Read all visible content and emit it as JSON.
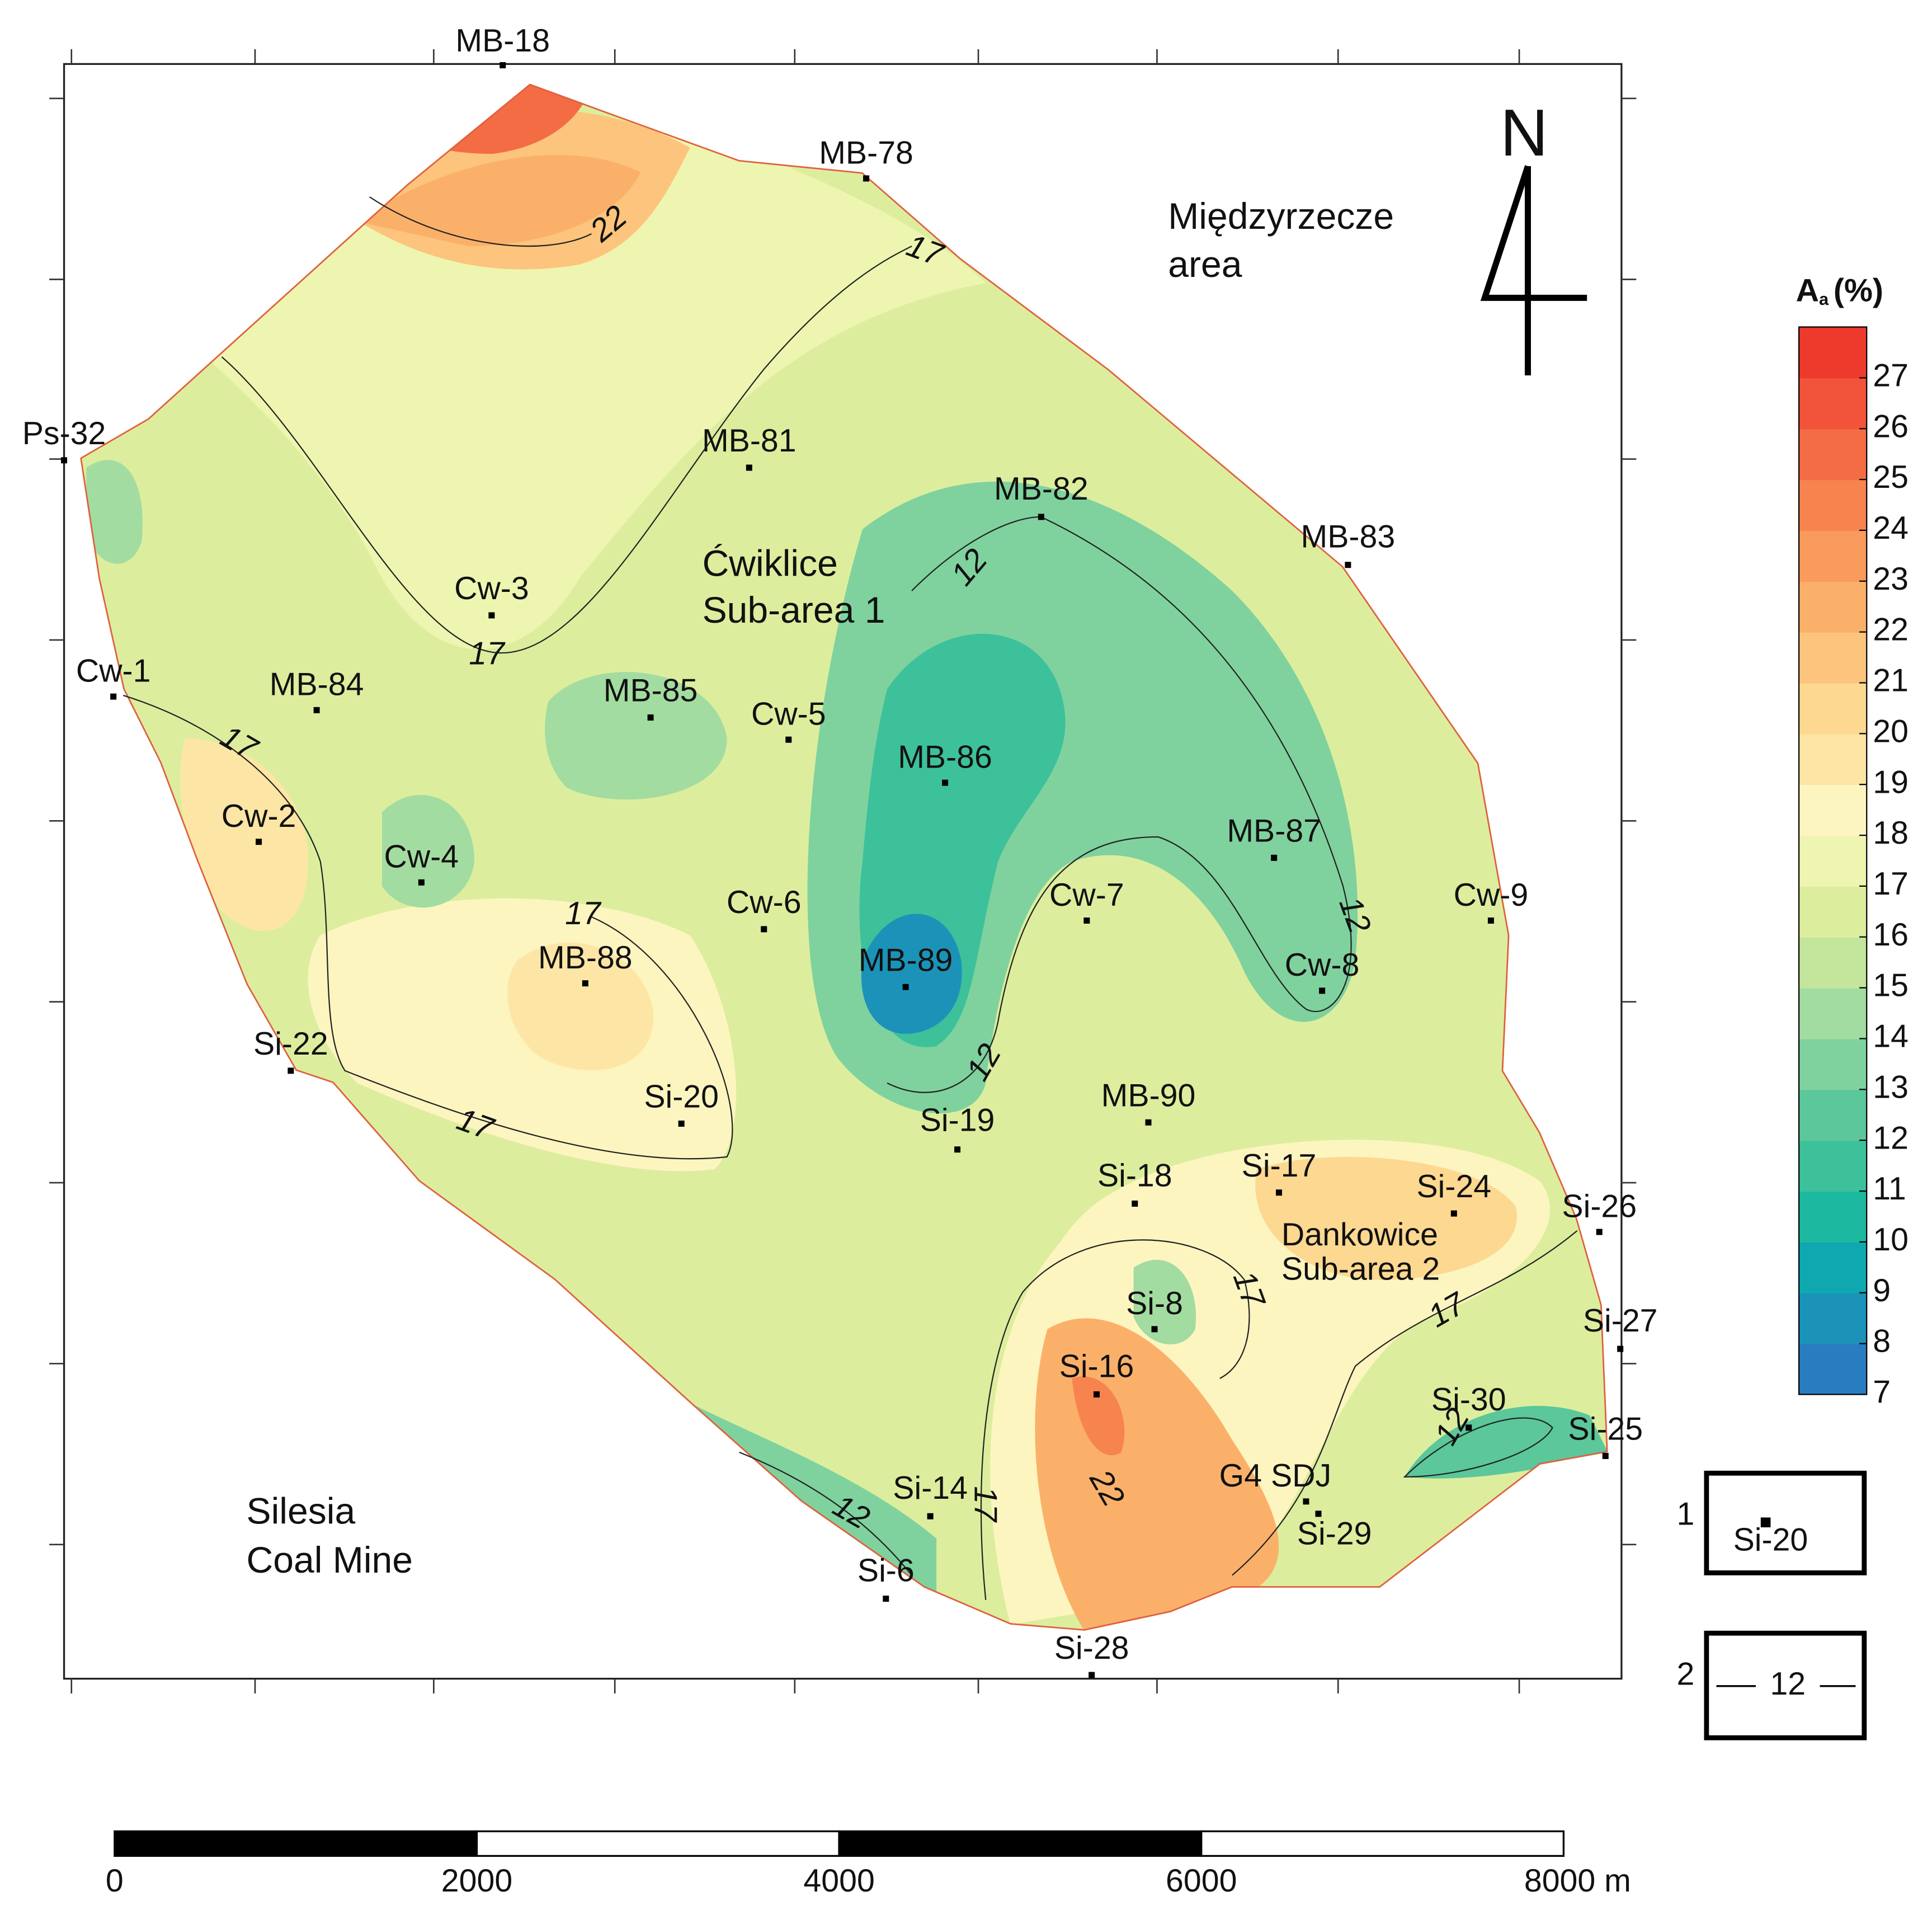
{
  "wells": [
    {
      "name": "MB-18"
    },
    {
      "name": "MB-78"
    },
    {
      "name": "Ps-32"
    },
    {
      "name": "MB-81"
    },
    {
      "name": "MB-82"
    },
    {
      "name": "MB-83"
    },
    {
      "name": "Cw-3"
    },
    {
      "name": "Cw-1"
    },
    {
      "name": "MB-84"
    },
    {
      "name": "MB-85"
    },
    {
      "name": "Cw-5"
    },
    {
      "name": "MB-86"
    },
    {
      "name": "Cw-2"
    },
    {
      "name": "MB-87"
    },
    {
      "name": "Cw-4"
    },
    {
      "name": "Cw-6"
    },
    {
      "name": "Cw-7"
    },
    {
      "name": "Cw-9"
    },
    {
      "name": "MB-88"
    },
    {
      "name": "MB-89"
    },
    {
      "name": "Cw-8"
    },
    {
      "name": "Si-22"
    },
    {
      "name": "Si-20"
    },
    {
      "name": "MB-90"
    },
    {
      "name": "Si-19"
    },
    {
      "name": "Si-18"
    },
    {
      "name": "Si-17"
    },
    {
      "name": "Si-24"
    },
    {
      "name": "Si-26"
    },
    {
      "name": "Si-8"
    },
    {
      "name": "Si-27"
    },
    {
      "name": "Si-16"
    },
    {
      "name": "Si-30"
    },
    {
      "name": "Si-25"
    },
    {
      "name": "G4 SDJ"
    },
    {
      "name": "Si-29"
    },
    {
      "name": "Si-14"
    },
    {
      "name": "Si-6"
    },
    {
      "name": "Si-28"
    }
  ],
  "contour_labels": [
    22,
    17,
    12,
    17,
    17,
    17,
    12,
    12,
    17,
    17,
    17,
    12,
    22,
    12,
    17
  ],
  "area_labels": [
    {
      "lines": [
        "Międzyrzecze",
        "area"
      ]
    },
    {
      "lines": [
        "Ćwiklice",
        "Sub-area 1"
      ]
    },
    {
      "lines": [
        "Dankowice",
        "Sub-area 2"
      ]
    },
    {
      "lines": [
        "Silesia",
        "Coal Mine"
      ]
    }
  ],
  "north": "N",
  "color_scale": {
    "title": "A",
    "title_sub": "a",
    "title_unit": "(%)",
    "ticks": [
      7,
      8,
      9,
      10,
      11,
      12,
      13,
      14,
      15,
      16,
      17,
      18,
      19,
      20,
      21,
      22,
      23,
      24,
      25,
      26,
      27
    ],
    "colors": [
      "#2a7cc0",
      "#1b93b8",
      "#0fa8b0",
      "#1cb9a0",
      "#3dc19a",
      "#5bc79a",
      "#7fd29e",
      "#a3dca0",
      "#c3e59c",
      "#dcee9e",
      "#eef5b0",
      "#fdf5c0",
      "#fde6a5",
      "#fdd890",
      "#fcc47c",
      "#fbb06a",
      "#f99b5c",
      "#f7844f",
      "#f46c44",
      "#f1543a",
      "#ee3a2c"
    ]
  },
  "scale_bar": {
    "ticks": [
      0,
      2000,
      4000,
      6000,
      {
        "value": 8000,
        "label": "8000 m"
      }
    ]
  },
  "legend": [
    {
      "number": "1",
      "sample": "Si-20"
    },
    {
      "number": "2",
      "sample": "12"
    }
  ]
}
